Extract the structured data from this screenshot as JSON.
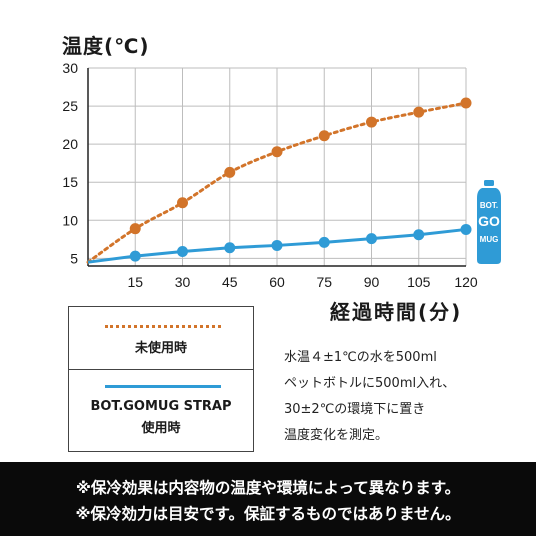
{
  "chart_data": {
    "type": "line",
    "ylabel": "温度(℃)",
    "xlabel": "経過時間(分)",
    "x": [
      15,
      30,
      45,
      60,
      75,
      90,
      105,
      120
    ],
    "x_ticks": [
      "15",
      "30",
      "45",
      "60",
      "75",
      "90",
      "105",
      "120"
    ],
    "y_ticks": [
      "30",
      "25",
      "20",
      "15",
      "10",
      "5"
    ],
    "xlim": [
      0,
      120
    ],
    "ylim": [
      4,
      30
    ],
    "grid": true,
    "series": [
      {
        "name": "未使用時",
        "start": 4.5,
        "values": [
          8.9,
          12.3,
          16.3,
          19.0,
          21.1,
          22.9,
          24.2,
          25.4
        ],
        "color": "#d2742a",
        "style": "dotted"
      },
      {
        "name": "BOT.GOMUG STRAP 使用時",
        "start": 4.5,
        "values": [
          5.3,
          5.9,
          6.4,
          6.7,
          7.1,
          7.6,
          8.1,
          8.8
        ],
        "color": "#2f9bd6",
        "style": "solid"
      }
    ]
  },
  "legend": {
    "item1": "未使用時",
    "item2_line1": "BOT.GOMUG STRAP",
    "item2_line2": "使用時"
  },
  "note": {
    "line1": "水温４±1℃の水を500ml",
    "line2": "ペットボトルに500ml入れ、",
    "line3": "30±2℃の環境下に置き",
    "line4": "温度変化を測定。"
  },
  "logo": {
    "text1": "BOT.",
    "text2": "GO",
    "text3": "MUG",
    "color": "#2f9bd6"
  },
  "disclaimer": {
    "line1": "※保冷効果は内容物の温度や環境によって異なります。",
    "line2": "※保冷効力は目安です。保証するものではありません。"
  }
}
